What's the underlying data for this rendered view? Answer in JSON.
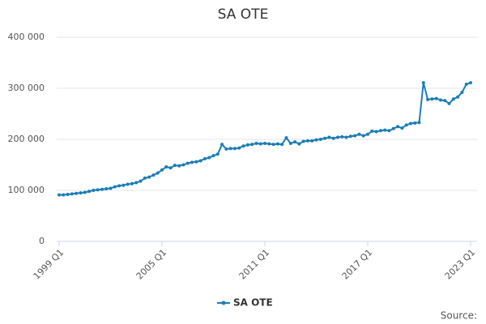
{
  "chart_data": {
    "type": "line",
    "title": "SA OTE",
    "source": "Source:",
    "categories": [
      "1999 Q1",
      null,
      null,
      null,
      null,
      null,
      null,
      null,
      null,
      null,
      null,
      null,
      null,
      null,
      null,
      null,
      null,
      null,
      null,
      null,
      null,
      null,
      null,
      null,
      "2005 Q1",
      null,
      null,
      null,
      null,
      null,
      null,
      null,
      null,
      null,
      null,
      null,
      null,
      null,
      null,
      null,
      null,
      null,
      null,
      null,
      null,
      null,
      null,
      null,
      "2011 Q1",
      null,
      null,
      null,
      null,
      null,
      null,
      null,
      null,
      null,
      null,
      null,
      null,
      null,
      null,
      null,
      null,
      null,
      null,
      null,
      null,
      null,
      null,
      null,
      "2017 Q1",
      null,
      null,
      null,
      null,
      null,
      null,
      null,
      null,
      null,
      null,
      null,
      null,
      null,
      null,
      null,
      null,
      null,
      null,
      null,
      null,
      null,
      null,
      null,
      "2023 Q1"
    ],
    "series": [
      {
        "name": "SA OTE",
        "color": "#1a7db6",
        "values": [
          91000,
          91000,
          92000,
          93000,
          94000,
          95000,
          96000,
          98000,
          100000,
          101000,
          102000,
          103000,
          104000,
          107000,
          109000,
          110000,
          112000,
          113000,
          115000,
          118000,
          124000,
          126000,
          130000,
          134000,
          140000,
          146000,
          144000,
          149000,
          148000,
          150000,
          153000,
          155000,
          156000,
          158000,
          162000,
          164000,
          168000,
          171000,
          190000,
          181000,
          182000,
          182000,
          183000,
          187000,
          189000,
          190000,
          192000,
          191000,
          192000,
          191000,
          190000,
          191000,
          190000,
          203000,
          192000,
          195000,
          191000,
          196000,
          197000,
          197000,
          199000,
          200000,
          202000,
          204000,
          202000,
          204000,
          205000,
          204000,
          206000,
          207000,
          210000,
          207000,
          210000,
          216000,
          215000,
          217000,
          218000,
          217000,
          221000,
          225000,
          222000,
          228000,
          231000,
          232000,
          233000,
          311000,
          278000,
          279000,
          280000,
          277000,
          276000,
          270000,
          279000,
          283000,
          292000,
          308000,
          311000
        ]
      }
    ],
    "ylim": [
      0,
      400000
    ],
    "yticks": [
      0,
      {
        "value": 100000,
        "label": "100 000"
      },
      {
        "value": 200000,
        "label": "200 000"
      },
      {
        "value": 300000,
        "label": "300 000"
      },
      {
        "value": 400000,
        "label": "400 000"
      }
    ],
    "grid": true,
    "legend": "bottom"
  }
}
